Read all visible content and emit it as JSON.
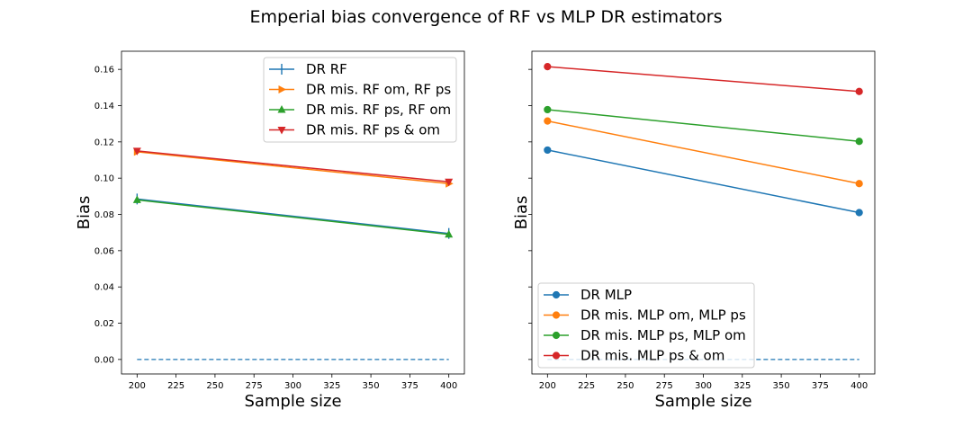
{
  "title": "Emperial bias convergence of RF vs MLP DR estimators",
  "chart_data": [
    {
      "type": "line",
      "xlabel": "Sample size",
      "ylabel": "Bias",
      "x": [
        200,
        400
      ],
      "xlim": [
        190,
        410
      ],
      "ylim": [
        -0.008,
        0.17
      ],
      "xticks": [
        200,
        225,
        250,
        275,
        300,
        325,
        350,
        375,
        400
      ],
      "yticks": [
        0.0,
        0.02,
        0.04,
        0.06,
        0.08,
        0.1,
        0.12,
        0.14,
        0.16
      ],
      "ytick_labels": [
        "0.00",
        "0.02",
        "0.04",
        "0.06",
        "0.08",
        "0.10",
        "0.12",
        "0.14",
        "0.16"
      ],
      "show_ytick_labels": true,
      "legend_position": "top-right",
      "series": [
        {
          "name": "DR RF",
          "values": [
            0.0885,
            0.0695
          ],
          "color": "#1f77b4",
          "marker": "vline"
        },
        {
          "name": "DR mis. RF om, RF ps",
          "values": [
            0.1145,
            0.097
          ],
          "color": "#ff7f0e",
          "marker": "triangle-right"
        },
        {
          "name": "DR mis. RF ps, RF om",
          "values": [
            0.088,
            0.069
          ],
          "color": "#2ca02c",
          "marker": "triangle-up"
        },
        {
          "name": "DR mis. RF ps & om",
          "values": [
            0.115,
            0.098
          ],
          "color": "#d62728",
          "marker": "triangle-down"
        }
      ],
      "reference_line": {
        "x": [
          200,
          400
        ],
        "value": 0.0,
        "color": "#1f77b4",
        "style": "dashed"
      }
    },
    {
      "type": "line",
      "xlabel": "Sample size",
      "ylabel": "Bias",
      "x": [
        200,
        400
      ],
      "xlim": [
        190,
        410
      ],
      "ylim": [
        -0.008,
        0.17
      ],
      "xticks": [
        200,
        225,
        250,
        275,
        300,
        325,
        350,
        375,
        400
      ],
      "yticks": [
        0.0,
        0.02,
        0.04,
        0.06,
        0.08,
        0.1,
        0.12,
        0.14,
        0.16
      ],
      "ytick_labels": [],
      "show_ytick_labels": false,
      "legend_position": "bottom-left",
      "series": [
        {
          "name": "DR MLP",
          "values": [
            0.1155,
            0.081
          ],
          "color": "#1f77b4",
          "marker": "circle"
        },
        {
          "name": "DR mis. MLP om, MLP ps",
          "values": [
            0.1315,
            0.097
          ],
          "color": "#ff7f0e",
          "marker": "circle"
        },
        {
          "name": "DR mis. MLP ps, MLP om",
          "values": [
            0.1378,
            0.1203
          ],
          "color": "#2ca02c",
          "marker": "circle"
        },
        {
          "name": "DR mis. MLP ps & om",
          "values": [
            0.1615,
            0.1478
          ],
          "color": "#d62728",
          "marker": "circle"
        }
      ],
      "reference_line": {
        "x": [
          200,
          400
        ],
        "value": 0.0,
        "color": "#1f77b4",
        "style": "dashed"
      }
    }
  ]
}
